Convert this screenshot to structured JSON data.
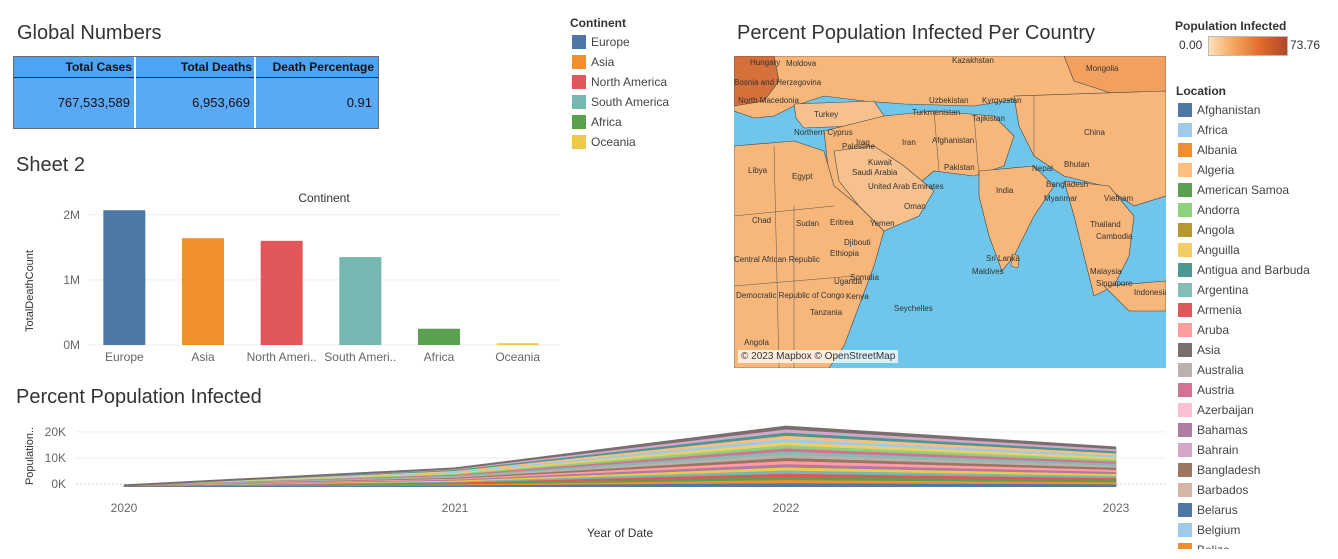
{
  "global": {
    "title": "Global Numbers",
    "headers": [
      "Total Cases",
      "Total Deaths",
      "Death Percentage"
    ],
    "values": [
      "767,533,589",
      "6,953,669",
      "0.91"
    ]
  },
  "continent_legend": {
    "title": "Continent",
    "items": [
      {
        "label": "Europe",
        "color": "#4e79a7"
      },
      {
        "label": "Asia",
        "color": "#f28e2b"
      },
      {
        "label": "North America",
        "color": "#e15759"
      },
      {
        "label": "South America",
        "color": "#76b7b2"
      },
      {
        "label": "Africa",
        "color": "#59a14f"
      },
      {
        "label": "Oceania",
        "color": "#edc948"
      }
    ]
  },
  "map": {
    "title": "Percent Population Infected Per Country",
    "attribution": "© 2023 Mapbox © OpenStreetMap",
    "labels": [
      "Hungary",
      "Moldova",
      "Kazakhstan",
      "Mongolia",
      "Bosnia and Herzegovina",
      "North Macedonia",
      "Turkey",
      "Uzbekistan",
      "Kyrgyzstan",
      "Turkmenistan",
      "Tajikistan",
      "Northern Cyprus",
      "Afghanistan",
      "China",
      "Palestine",
      "Iraq",
      "Iran",
      "Libya",
      "Egypt",
      "Saudi Arabia",
      "Kuwait",
      "Pakistan",
      "Nepal",
      "Bhutan",
      "Bangladesh",
      "India",
      "Myanmar",
      "Vietnam",
      "United Arab Emirates",
      "Oman",
      "Thailand",
      "Chad",
      "Sudan",
      "Eritrea",
      "Yemen",
      "Cambodia",
      "Djibouti",
      "Central African Republic",
      "Ethiopia",
      "Sri Lanka",
      "Maldives",
      "Malaysia",
      "Somalia",
      "Uganda",
      "Singapore",
      "Democratic Republic of Congo",
      "Kenya",
      "Seychelles",
      "Tanzania",
      "Angola",
      "Indonesia"
    ]
  },
  "pop_legend": {
    "title": "Population Infected",
    "min": "0.00",
    "max": "73.76"
  },
  "location_legend": {
    "title": "Location",
    "items": [
      {
        "label": "Afghanistan",
        "color": "#4e79a7"
      },
      {
        "label": "Africa",
        "color": "#a0cbe8"
      },
      {
        "label": "Albania",
        "color": "#f28e2b"
      },
      {
        "label": "Algeria",
        "color": "#ffbe7d"
      },
      {
        "label": "American Samoa",
        "color": "#59a14f"
      },
      {
        "label": "Andorra",
        "color": "#8cd17d"
      },
      {
        "label": "Angola",
        "color": "#b6992d"
      },
      {
        "label": "Anguilla",
        "color": "#f1ce63"
      },
      {
        "label": "Antigua and Barbuda",
        "color": "#499894"
      },
      {
        "label": "Argentina",
        "color": "#86bcb6"
      },
      {
        "label": "Armenia",
        "color": "#e15759"
      },
      {
        "label": "Aruba",
        "color": "#ff9d9a"
      },
      {
        "label": "Asia",
        "color": "#79706e"
      },
      {
        "label": "Australia",
        "color": "#bab0ac"
      },
      {
        "label": "Austria",
        "color": "#d37295"
      },
      {
        "label": "Azerbaijan",
        "color": "#fabfd2"
      },
      {
        "label": "Bahamas",
        "color": "#b07aa1"
      },
      {
        "label": "Bahrain",
        "color": "#d4a6c8"
      },
      {
        "label": "Bangladesh",
        "color": "#9d7660"
      },
      {
        "label": "Barbados",
        "color": "#d7b5a6"
      },
      {
        "label": "Belarus",
        "color": "#4e79a7"
      },
      {
        "label": "Belgium",
        "color": "#a0cbe8"
      },
      {
        "label": "Belize",
        "color": "#f28e2b"
      }
    ]
  },
  "chart_data": [
    {
      "type": "bar",
      "title": "Sheet 2",
      "header": "Continent",
      "ylabel": "TotalDeathCount",
      "categories": [
        "Europe",
        "Asia",
        "North Ameri..",
        "South Ameri..",
        "Africa",
        "Oceania"
      ],
      "values": [
        2070000,
        1640000,
        1600000,
        1350000,
        250000,
        28000
      ],
      "colors": [
        "#4e79a7",
        "#f28e2b",
        "#e15759",
        "#76b7b2",
        "#59a14f",
        "#edc948"
      ],
      "yticks": [
        "0M",
        "1M",
        "2M"
      ],
      "ylim": [
        0,
        2150000
      ]
    },
    {
      "type": "area",
      "title": "Percent Population Infected",
      "xlabel": "Year of Date",
      "ylabel": "Population..",
      "x": [
        "2020",
        "2021",
        "2022",
        "2023"
      ],
      "yticks": [
        "0K",
        "10K",
        "20K"
      ],
      "ylim": [
        -1500,
        23000
      ],
      "stack_totals": [
        -500,
        6000,
        22000,
        14000
      ],
      "layer_colors": [
        "#4e79a7",
        "#f28e2b",
        "#59a14f",
        "#e15759",
        "#76b7b2",
        "#edc948",
        "#b07aa1",
        "#ff9da7",
        "#9c755f",
        "#bab0ac",
        "#86bcb6",
        "#d37295",
        "#8cd17d",
        "#f1ce63",
        "#a0cbe8",
        "#ffbe7d",
        "#499894",
        "#d4a6c8",
        "#79706e"
      ]
    }
  ]
}
